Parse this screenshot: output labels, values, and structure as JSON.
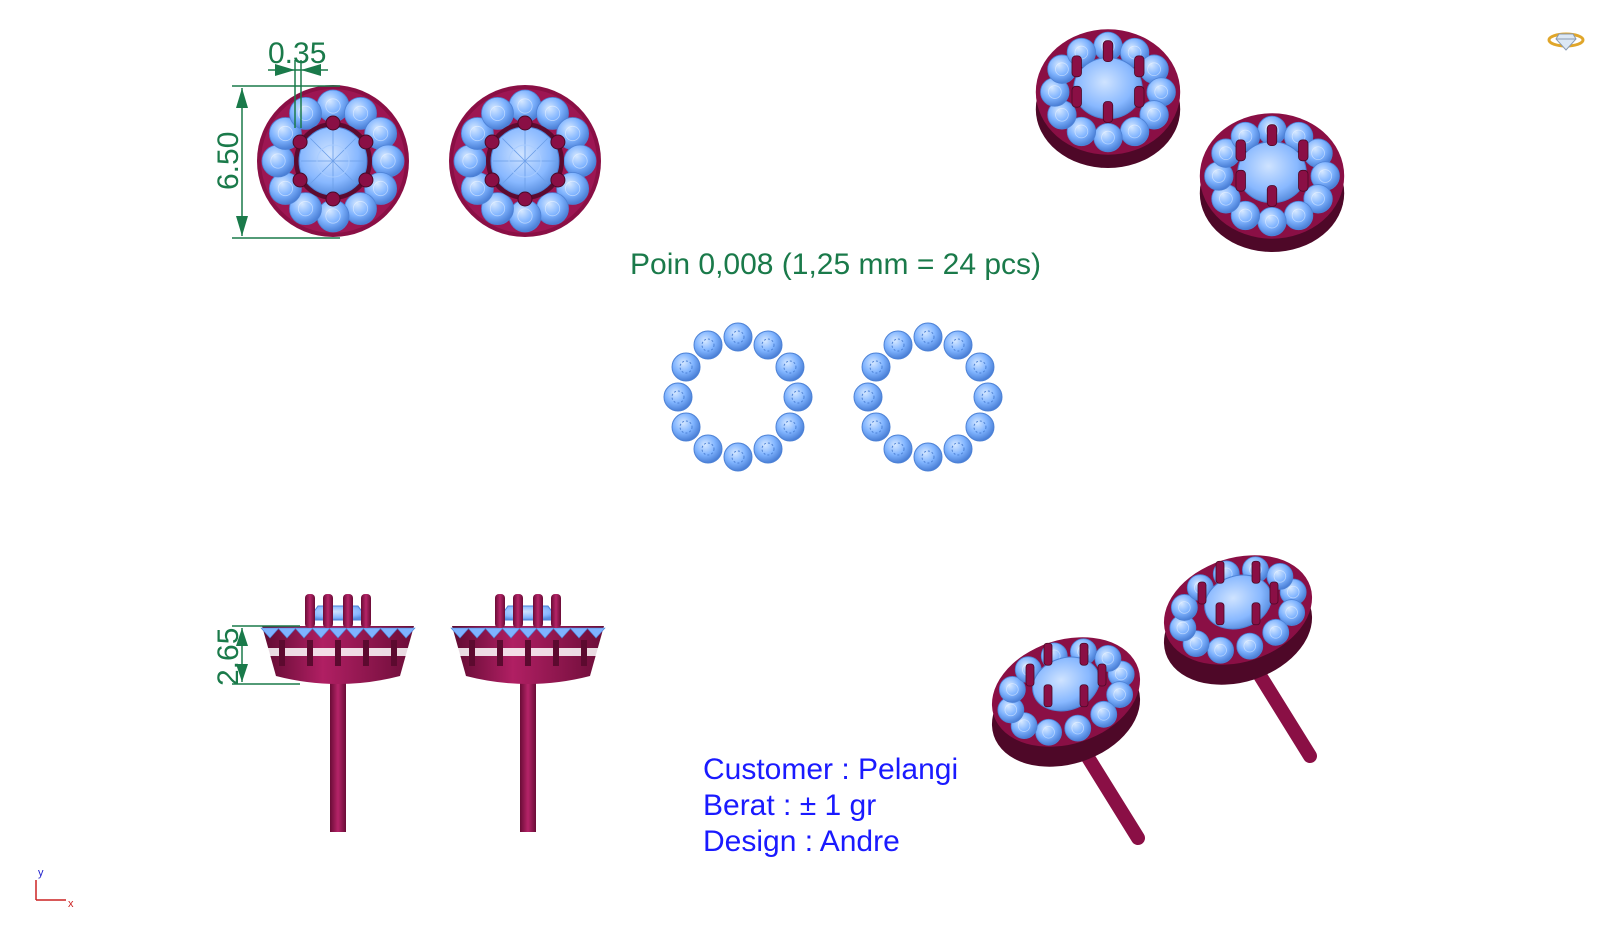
{
  "dimensions": {
    "prong_width": "0.35",
    "diameter": "6.50",
    "height": "2.65"
  },
  "stone_spec": "Poin  0,008 (1,25 mm = 24 pcs)",
  "info": {
    "customer": "Customer : Pelangi",
    "weight": "Berat : ± 1 gr",
    "design": "Design : Andre"
  },
  "axis": {
    "y": "y",
    "x": "x"
  },
  "colors": {
    "metal": "#8a0f45",
    "metal_light": "#c0246e",
    "stone": "#7fb2ff",
    "stone_dark": "#4d82d6",
    "dimension": "#1a7a4a",
    "info_text": "#1a1aff"
  },
  "icons": {
    "corner": "diamond-ring-icon"
  }
}
